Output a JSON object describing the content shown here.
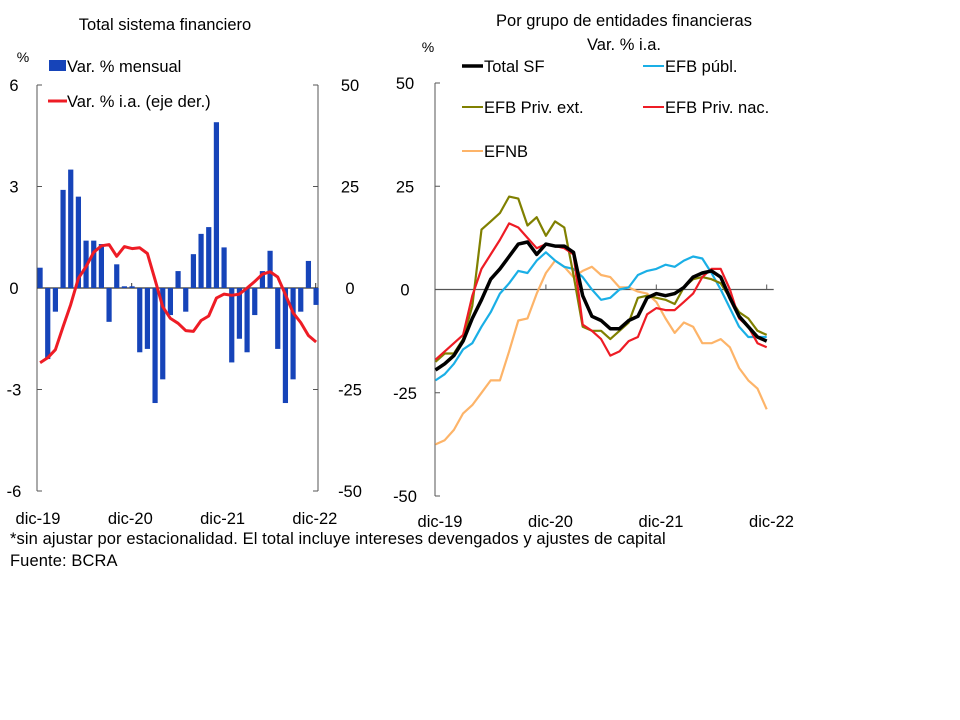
{
  "footnote": "*sin ajustar por estacionalidad. El total incluye intereses devengados y ajustes de capital",
  "source": "Fuente: BCRA",
  "chart_data": [
    {
      "type": "bar+line",
      "title": "Total sistema financiero",
      "ylabel_left": "%",
      "ylim_left": [
        -6,
        6
      ],
      "yticks_left": [
        "6",
        "3",
        "0",
        "-3",
        "-6"
      ],
      "yticks_left_values": [
        6,
        3,
        0,
        -3,
        -6
      ],
      "ylim_right": [
        -50,
        50
      ],
      "yticks_right": [
        "50",
        "25",
        "0",
        "-25",
        "-50"
      ],
      "yticks_right_values": [
        50,
        25,
        0,
        -25,
        -50
      ],
      "xtick_labels": [
        "dic-19",
        "dic-20",
        "dic-21",
        "dic-22"
      ],
      "xtick_index": [
        0,
        12,
        24,
        36
      ],
      "legend": [
        {
          "label": "Var. % mensual",
          "kind": "bar",
          "color": "#1644B9"
        },
        {
          "label": "Var. % i.a. (eje der.)",
          "kind": "line",
          "color": "#EE1C25"
        }
      ],
      "legend_position": "top-left",
      "x": [
        "dic-19",
        "ene-20",
        "feb-20",
        "mar-20",
        "abr-20",
        "may-20",
        "jun-20",
        "jul-20",
        "ago-20",
        "sep-20",
        "oct-20",
        "nov-20",
        "dic-20",
        "ene-21",
        "feb-21",
        "mar-21",
        "abr-21",
        "may-21",
        "jun-21",
        "jul-21",
        "ago-21",
        "sep-21",
        "oct-21",
        "nov-21",
        "dic-21",
        "ene-22",
        "feb-22",
        "mar-22",
        "abr-22",
        "may-22",
        "jun-22",
        "jul-22",
        "ago-22",
        "sep-22",
        "oct-22",
        "nov-22",
        "dic-22"
      ],
      "series": [
        {
          "name": "Var. % mensual",
          "axis": "left",
          "values": [
            0.6,
            -2.1,
            -0.7,
            2.9,
            3.5,
            2.7,
            1.4,
            1.4,
            1.3,
            -1.0,
            0.7,
            0.05,
            0.05,
            -1.9,
            -1.8,
            -3.4,
            -2.7,
            -0.8,
            0.5,
            -0.7,
            1.0,
            1.6,
            1.8,
            4.9,
            1.2,
            -2.2,
            -1.5,
            -1.9,
            -0.8,
            0.5,
            1.1,
            -1.8,
            -3.4,
            -2.7,
            -0.7,
            0.8,
            -0.5
          ]
        },
        {
          "name": "Var. % i.a. (eje der.)",
          "axis": "right",
          "values": [
            -18.4,
            -17.2,
            -15.2,
            -9.5,
            -4.1,
            2.4,
            5.3,
            8.8,
            10.4,
            10.7,
            7.8,
            10.2,
            9.7,
            9.9,
            8.5,
            2.0,
            -4.6,
            -7.5,
            -8.7,
            -10.5,
            -10.7,
            -8.0,
            -6.9,
            -2.5,
            -1.5,
            -1.8,
            -1.5,
            0.0,
            1.6,
            3.4,
            4.0,
            2.7,
            -1.6,
            -6.1,
            -8.5,
            -11.7,
            -13.3
          ]
        }
      ]
    },
    {
      "type": "line",
      "title": "Por grupo de entidades financieras",
      "subtitle": "Var. % i.a.",
      "ylabel": "%",
      "ylim": [
        -50,
        50
      ],
      "yticks": [
        "50",
        "25",
        "0",
        "-25",
        "-50"
      ],
      "yticks_values": [
        50,
        25,
        0,
        -25,
        -50
      ],
      "xtick_labels": [
        "dic-19",
        "dic-20",
        "dic-21",
        "dic-22"
      ],
      "xtick_index": [
        0,
        12,
        24,
        36
      ],
      "legend_position": "top",
      "legend": [
        {
          "label": "Total SF",
          "color": "#000000"
        },
        {
          "label": "EFB públ.",
          "color": "#1AAFE6"
        },
        {
          "label": "EFB Priv. ext.",
          "color": "#808000"
        },
        {
          "label": "EFB Priv. nac.",
          "color": "#EE1C25"
        },
        {
          "label": "EFNB",
          "color": "#FDB469"
        }
      ],
      "series": [
        {
          "name": "Total SF",
          "values": [
            -19.5,
            -18,
            -16,
            -12.5,
            -7,
            -2.5,
            2.5,
            5,
            8,
            11,
            11.5,
            8.5,
            11,
            10.5,
            10.5,
            9,
            -1.5,
            -6.5,
            -7.5,
            -9.5,
            -9.5,
            -7.5,
            -6.5,
            -2,
            -1,
            -1.5,
            -1,
            0.5,
            3,
            4,
            4.5,
            3,
            -2,
            -6.5,
            -9,
            -11.5,
            -12.5
          ]
        },
        {
          "name": "EFB públ.",
          "values": [
            -22,
            -20.5,
            -18,
            -14.5,
            -13,
            -9,
            -5.5,
            -1,
            1.5,
            4.5,
            4,
            7,
            9,
            7,
            5.5,
            5,
            3,
            0,
            -2.5,
            -2,
            0,
            0.5,
            3.5,
            4.5,
            5,
            6,
            5.5,
            7,
            8,
            7.5,
            4,
            0,
            -4.5,
            -9,
            -11.5,
            -11.5,
            -11.5
          ]
        },
        {
          "name": "EFB Priv. ext.",
          "values": [
            -17.5,
            -15.5,
            -15.5,
            -12,
            -4,
            14.5,
            16.5,
            18.5,
            22.5,
            22,
            15.5,
            17.5,
            13,
            16.5,
            15,
            3.5,
            -9,
            -10,
            -10,
            -12,
            -10,
            -8,
            -2,
            -1.5,
            -2,
            -2.5,
            -3.5,
            0.5,
            2.5,
            3,
            2.5,
            1.5,
            -2,
            -5.5,
            -7,
            -10,
            -11
          ]
        },
        {
          "name": "EFB Priv. nac.",
          "values": [
            -17,
            -15,
            -13,
            -11,
            -1.5,
            5,
            8.5,
            12,
            16,
            15,
            12.5,
            10,
            11,
            10.5,
            10,
            8.5,
            -8.5,
            -10,
            -12,
            -16,
            -15,
            -12.5,
            -11.5,
            -6,
            -4.5,
            -5,
            -5,
            -3,
            -1,
            3,
            5,
            5,
            0,
            -7,
            -9,
            -13,
            -14
          ]
        },
        {
          "name": "EFNB",
          "values": [
            -37.5,
            -36.5,
            -34,
            -30,
            -28,
            -25,
            -22,
            -22,
            -15,
            -7.5,
            -7,
            -1,
            4,
            7,
            5.5,
            3,
            4.5,
            5.5,
            3.5,
            3,
            0.5,
            0.5,
            -0.5,
            -1,
            -3,
            -7,
            -10.5,
            -8,
            -9,
            -13,
            -13,
            -12,
            -14,
            -19,
            -22,
            -24,
            -29
          ]
        }
      ]
    }
  ]
}
